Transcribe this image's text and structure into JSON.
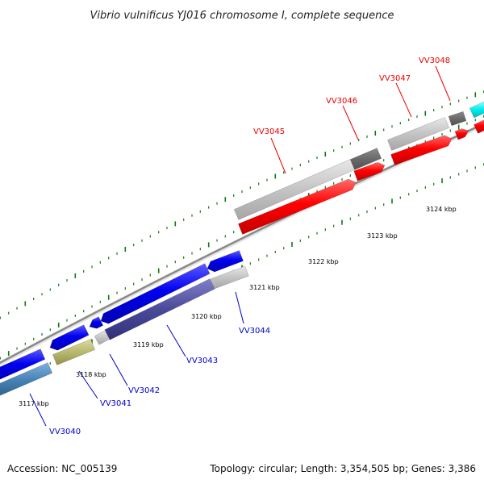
{
  "title": "Vibrio vulnificus YJ016 chromosome I, complete sequence",
  "footer": {
    "accession": "Accession: NC_005139",
    "topology": "Topology: circular; Length: 3,354,505 bp; Genes: 3,386"
  },
  "colors": {
    "forward_label": "#ee0000",
    "reverse_label": "#0000cc",
    "backbone": "#888888",
    "tick": "#117711"
  },
  "scale_ticks": [
    "3117 kbp",
    "3118 kbp",
    "3119 kbp",
    "3120 kbp",
    "3121 kbp",
    "3122 kbp",
    "3123 kbp",
    "3124 kbp"
  ],
  "gene_labels": {
    "forward": [
      "VV3045",
      "VV3046",
      "VV3047",
      "VV3048"
    ],
    "reverse": [
      "VV3040",
      "VV3041",
      "VV3042",
      "VV3043",
      "VV3044"
    ]
  }
}
